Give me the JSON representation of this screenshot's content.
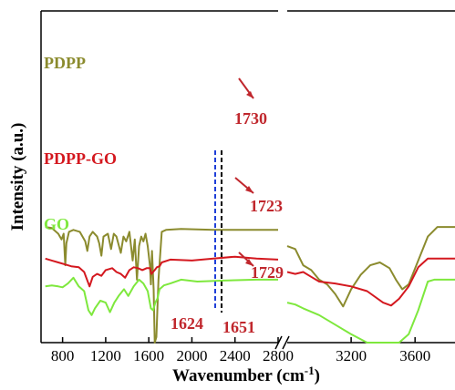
{
  "chart_data": {
    "type": "line",
    "xlabel": "Wavenumber (cm",
    "xlabel_sup": "-1",
    "xlabel_end": ")",
    "ylabel": "Intensity (a.u.)",
    "x_segments": [
      {
        "range": [
          600,
          2800
        ],
        "ticks": [
          800,
          1200,
          1600,
          2000,
          2400,
          2800
        ]
      },
      {
        "range": [
          2800,
          3850
        ],
        "ticks": [
          3200,
          3600
        ]
      }
    ],
    "colors": {
      "PDPP": "#8b8b2e",
      "PDPP-GO": "#d4181f",
      "GO": "#7ee83d",
      "annotation": "#c0272d",
      "ref_blue": "#1f3fd8",
      "ref_black": "#000000"
    },
    "series": [
      {
        "name": "PDPP",
        "offset": 0.72,
        "left": [
          [
            640,
            0.05
          ],
          [
            700,
            0.04
          ],
          [
            760,
            -0.02
          ],
          [
            790,
            -0.08
          ],
          [
            810,
            -0.02
          ],
          [
            825,
            -0.35
          ],
          [
            835,
            -0.12
          ],
          [
            860,
            0.0
          ],
          [
            900,
            0.02
          ],
          [
            960,
            0.0
          ],
          [
            1010,
            -0.1
          ],
          [
            1030,
            -0.2
          ],
          [
            1050,
            -0.05
          ],
          [
            1080,
            0.0
          ],
          [
            1120,
            -0.05
          ],
          [
            1140,
            -0.12
          ],
          [
            1160,
            -0.25
          ],
          [
            1180,
            -0.05
          ],
          [
            1220,
            -0.02
          ],
          [
            1250,
            -0.18
          ],
          [
            1275,
            -0.02
          ],
          [
            1300,
            -0.05
          ],
          [
            1340,
            -0.22
          ],
          [
            1365,
            -0.05
          ],
          [
            1390,
            -0.1
          ],
          [
            1420,
            -0.0
          ],
          [
            1450,
            -0.3
          ],
          [
            1470,
            -0.08
          ],
          [
            1490,
            -0.5
          ],
          [
            1510,
            -0.15
          ],
          [
            1530,
            -0.05
          ],
          [
            1550,
            -0.1
          ],
          [
            1570,
            -0.02
          ],
          [
            1590,
            -0.15
          ],
          [
            1610,
            -0.35
          ],
          [
            1620,
            -0.55
          ],
          [
            1630,
            -0.2
          ],
          [
            1645,
            -0.6
          ],
          [
            1655,
            -1.2
          ],
          [
            1670,
            -1.1
          ],
          [
            1690,
            -0.5
          ],
          [
            1720,
            0.0
          ],
          [
            1760,
            0.02
          ],
          [
            1900,
            0.03
          ],
          [
            2200,
            0.02
          ],
          [
            2500,
            0.02
          ],
          [
            2800,
            0.02
          ]
        ],
        "right": [
          [
            2800,
            -0.15
          ],
          [
            2850,
            -0.18
          ],
          [
            2900,
            -0.35
          ],
          [
            2950,
            -0.4
          ],
          [
            3000,
            -0.5
          ],
          [
            3050,
            -0.55
          ],
          [
            3100,
            -0.65
          ],
          [
            3150,
            -0.78
          ],
          [
            3200,
            -0.6
          ],
          [
            3260,
            -0.45
          ],
          [
            3320,
            -0.35
          ],
          [
            3380,
            -0.32
          ],
          [
            3440,
            -0.38
          ],
          [
            3480,
            -0.5
          ],
          [
            3520,
            -0.6
          ],
          [
            3560,
            -0.55
          ],
          [
            3620,
            -0.3
          ],
          [
            3680,
            -0.05
          ],
          [
            3740,
            0.05
          ],
          [
            3850,
            0.05
          ]
        ]
      },
      {
        "name": "PDPP-GO",
        "offset": 0.4,
        "left": [
          [
            640,
            0.04
          ],
          [
            700,
            0.02
          ],
          [
            760,
            0.0
          ],
          [
            820,
            -0.02
          ],
          [
            880,
            -0.04
          ],
          [
            950,
            -0.05
          ],
          [
            1000,
            -0.1
          ],
          [
            1050,
            -0.25
          ],
          [
            1080,
            -0.15
          ],
          [
            1120,
            -0.12
          ],
          [
            1160,
            -0.14
          ],
          [
            1200,
            -0.08
          ],
          [
            1260,
            -0.06
          ],
          [
            1300,
            -0.1
          ],
          [
            1340,
            -0.12
          ],
          [
            1380,
            -0.16
          ],
          [
            1420,
            -0.08
          ],
          [
            1460,
            -0.05
          ],
          [
            1500,
            -0.06
          ],
          [
            1540,
            -0.08
          ],
          [
            1580,
            -0.06
          ],
          [
            1610,
            -0.06
          ],
          [
            1625,
            -0.12
          ],
          [
            1640,
            -0.1
          ],
          [
            1655,
            -0.08
          ],
          [
            1675,
            -0.05
          ],
          [
            1700,
            -0.04
          ],
          [
            1720,
            0.0
          ],
          [
            1800,
            0.03
          ],
          [
            2000,
            0.02
          ],
          [
            2200,
            0.04
          ],
          [
            2400,
            0.06
          ],
          [
            2600,
            0.04
          ],
          [
            2800,
            0.03
          ]
        ],
        "right": [
          [
            2800,
            -0.1
          ],
          [
            2850,
            -0.12
          ],
          [
            2900,
            -0.1
          ],
          [
            2950,
            -0.15
          ],
          [
            3000,
            -0.2
          ],
          [
            3100,
            -0.22
          ],
          [
            3200,
            -0.25
          ],
          [
            3300,
            -0.3
          ],
          [
            3400,
            -0.42
          ],
          [
            3450,
            -0.45
          ],
          [
            3500,
            -0.38
          ],
          [
            3560,
            -0.25
          ],
          [
            3620,
            -0.05
          ],
          [
            3680,
            0.04
          ],
          [
            3850,
            0.04
          ]
        ]
      },
      {
        "name": "GO",
        "offset": 0.1,
        "left": [
          [
            640,
            0.05
          ],
          [
            700,
            0.06
          ],
          [
            760,
            0.05
          ],
          [
            800,
            0.04
          ],
          [
            850,
            0.08
          ],
          [
            900,
            0.14
          ],
          [
            950,
            0.05
          ],
          [
            1000,
            0.0
          ],
          [
            1040,
            -0.2
          ],
          [
            1070,
            -0.25
          ],
          [
            1100,
            -0.18
          ],
          [
            1150,
            -0.1
          ],
          [
            1200,
            -0.12
          ],
          [
            1240,
            -0.22
          ],
          [
            1280,
            -0.12
          ],
          [
            1320,
            -0.05
          ],
          [
            1370,
            0.02
          ],
          [
            1410,
            -0.05
          ],
          [
            1460,
            0.05
          ],
          [
            1510,
            0.12
          ],
          [
            1550,
            0.08
          ],
          [
            1590,
            0.0
          ],
          [
            1620,
            -0.18
          ],
          [
            1640,
            -0.2
          ],
          [
            1660,
            -0.12
          ],
          [
            1680,
            -0.08
          ],
          [
            1700,
            0.02
          ],
          [
            1740,
            0.06
          ],
          [
            1800,
            0.08
          ],
          [
            1900,
            0.12
          ],
          [
            2050,
            0.1
          ],
          [
            2300,
            0.11
          ],
          [
            2600,
            0.12
          ],
          [
            2800,
            0.12
          ]
        ],
        "right": [
          [
            2800,
            -0.12
          ],
          [
            2850,
            -0.14
          ],
          [
            2900,
            -0.18
          ],
          [
            3000,
            -0.25
          ],
          [
            3100,
            -0.35
          ],
          [
            3200,
            -0.45
          ],
          [
            3300,
            -0.58
          ],
          [
            3380,
            -0.68
          ],
          [
            3440,
            -0.72
          ],
          [
            3500,
            -0.62
          ],
          [
            3560,
            -0.45
          ],
          [
            3620,
            -0.2
          ],
          [
            3680,
            0.1
          ],
          [
            3720,
            0.12
          ],
          [
            3850,
            0.12
          ]
        ]
      }
    ],
    "annotations": [
      {
        "text": "1730",
        "series": "PDPP"
      },
      {
        "text": "1723",
        "series": "PDPP-GO"
      },
      {
        "text": "1729",
        "series": "GO"
      },
      {
        "text": "1624",
        "series": ""
      },
      {
        "text": "1651",
        "series": ""
      }
    ]
  }
}
